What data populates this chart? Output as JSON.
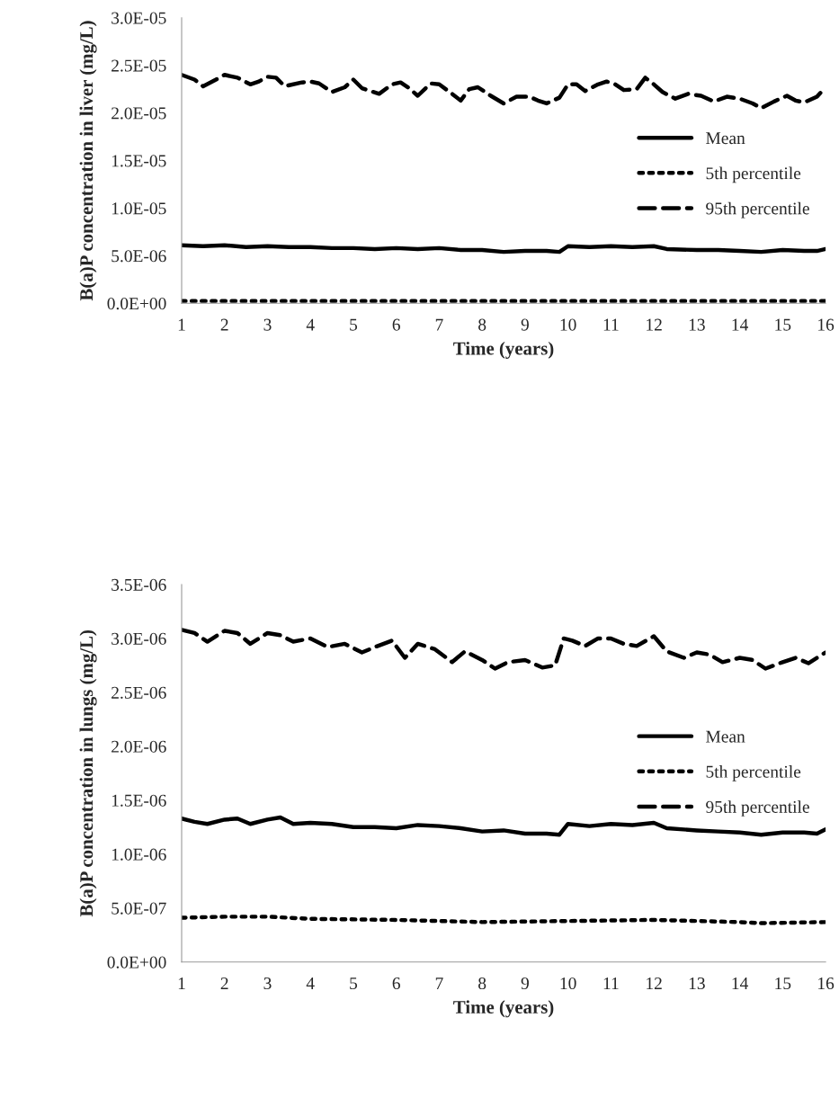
{
  "chart_data": [
    {
      "type": "line",
      "xlabel": "Time (years)",
      "ylabel": "B(a)P concentration in liver (mg/L)",
      "xlim": [
        1,
        16
      ],
      "xticks": [
        1,
        2,
        3,
        4,
        5,
        6,
        7,
        8,
        9,
        10,
        11,
        12,
        13,
        14,
        15,
        16
      ],
      "ylim": [
        0,
        3e-05
      ],
      "yticks": [
        {
          "value": 0,
          "label": "0.0E+00"
        },
        {
          "value": 5e-06,
          "label": "5.0E-06"
        },
        {
          "value": 1e-05,
          "label": "1.0E-05"
        },
        {
          "value": 1.5e-05,
          "label": "1.5E-05"
        },
        {
          "value": 2e-05,
          "label": "2.0E-05"
        },
        {
          "value": 2.5e-05,
          "label": "2.5E-05"
        },
        {
          "value": 3e-05,
          "label": "3.0E-05"
        }
      ],
      "grid": false,
      "legend": "right",
      "marker": "none",
      "series": [
        {
          "name": "Mean",
          "color": "#000000",
          "line_style": "solid",
          "x": [
            1,
            1.5,
            2,
            2.5,
            3,
            3.5,
            4,
            4.5,
            5,
            5.5,
            6,
            6.5,
            7,
            7.5,
            8,
            8.5,
            9,
            9.5,
            9.8,
            10,
            10.5,
            11,
            11.5,
            12,
            12.3,
            13,
            13.5,
            14,
            14.5,
            15,
            15.5,
            15.8,
            16
          ],
          "values": [
            6.1e-06,
            6e-06,
            6.1e-06,
            5.9e-06,
            6e-06,
            5.9e-06,
            5.9e-06,
            5.8e-06,
            5.8e-06,
            5.7e-06,
            5.8e-06,
            5.7e-06,
            5.8e-06,
            5.6e-06,
            5.6e-06,
            5.4e-06,
            5.5e-06,
            5.5e-06,
            5.4e-06,
            6e-06,
            5.9e-06,
            6e-06,
            5.9e-06,
            6e-06,
            5.7e-06,
            5.6e-06,
            5.6e-06,
            5.5e-06,
            5.4e-06,
            5.6e-06,
            5.5e-06,
            5.5e-06,
            5.7e-06
          ]
        },
        {
          "name": "5th percentile",
          "color": "#000000",
          "line_style": "dotted",
          "x": [
            1,
            4,
            8,
            12,
            16
          ],
          "values": [
            2.5e-07,
            2.5e-07,
            2.5e-07,
            2.5e-07,
            2.5e-07
          ]
        },
        {
          "name": "95th percentile",
          "color": "#000000",
          "line_style": "dashed",
          "x": [
            1,
            1.3,
            1.5,
            1.8,
            2,
            2.3,
            2.6,
            2.8,
            3,
            3.2,
            3.4,
            3.8,
            4,
            4.2,
            4.5,
            4.8,
            5,
            5.2,
            5.6,
            5.9,
            6.1,
            6.3,
            6.5,
            6.8,
            7,
            7.3,
            7.5,
            7.7,
            7.9,
            8.2,
            8.5,
            8.8,
            9.1,
            9.3,
            9.5,
            9.8,
            10,
            10.2,
            10.4,
            10.7,
            10.9,
            11.1,
            11.3,
            11.6,
            11.8,
            12,
            12.2,
            12.5,
            12.8,
            13.1,
            13.4,
            13.7,
            14,
            14.3,
            14.5,
            14.8,
            15.1,
            15.3,
            15.5,
            15.8,
            16
          ],
          "values": [
            2.4e-05,
            2.35e-05,
            2.28e-05,
            2.35e-05,
            2.4e-05,
            2.37e-05,
            2.3e-05,
            2.33e-05,
            2.38e-05,
            2.37e-05,
            2.28e-05,
            2.32e-05,
            2.33e-05,
            2.31e-05,
            2.22e-05,
            2.27e-05,
            2.35e-05,
            2.26e-05,
            2.2e-05,
            2.3e-05,
            2.32e-05,
            2.26e-05,
            2.18e-05,
            2.31e-05,
            2.3e-05,
            2.2e-05,
            2.13e-05,
            2.25e-05,
            2.27e-05,
            2.18e-05,
            2.1e-05,
            2.17e-05,
            2.17e-05,
            2.13e-05,
            2.1e-05,
            2.16e-05,
            2.3e-05,
            2.3e-05,
            2.23e-05,
            2.3e-05,
            2.33e-05,
            2.3e-05,
            2.24e-05,
            2.25e-05,
            2.37e-05,
            2.3e-05,
            2.22e-05,
            2.15e-05,
            2.2e-05,
            2.18e-05,
            2.12e-05,
            2.17e-05,
            2.15e-05,
            2.1e-05,
            2.05e-05,
            2.12e-05,
            2.18e-05,
            2.13e-05,
            2.11e-05,
            2.17e-05,
            2.27e-05
          ]
        }
      ]
    },
    {
      "type": "line",
      "xlabel": "Time (years)",
      "ylabel": "B(a)P concentration in lungs (mg/L)",
      "xlim": [
        1,
        16
      ],
      "xticks": [
        1,
        2,
        3,
        4,
        5,
        6,
        7,
        8,
        9,
        10,
        11,
        12,
        13,
        14,
        15,
        16
      ],
      "ylim": [
        0,
        3.5e-06
      ],
      "yticks": [
        {
          "value": 0,
          "label": "0.0E+00"
        },
        {
          "value": 5e-07,
          "label": "5.0E-07"
        },
        {
          "value": 1e-06,
          "label": "1.0E-06"
        },
        {
          "value": 1.5e-06,
          "label": "1.5E-06"
        },
        {
          "value": 2e-06,
          "label": "2.0E-06"
        },
        {
          "value": 2.5e-06,
          "label": "2.5E-06"
        },
        {
          "value": 3e-06,
          "label": "3.0E-06"
        },
        {
          "value": 3.5e-06,
          "label": "3.5E-06"
        }
      ],
      "grid": false,
      "legend": "right",
      "marker": "none",
      "series": [
        {
          "name": "Mean",
          "color": "#000000",
          "line_style": "solid",
          "x": [
            1,
            1.3,
            1.6,
            2,
            2.3,
            2.6,
            3,
            3.3,
            3.6,
            4,
            4.5,
            5,
            5.5,
            6,
            6.5,
            7,
            7.5,
            8,
            8.5,
            9,
            9.5,
            9.8,
            10,
            10.5,
            11,
            11.5,
            12,
            12.3,
            13,
            13.5,
            14,
            14.5,
            15,
            15.5,
            15.8,
            16
          ],
          "values": [
            1.33e-06,
            1.3e-06,
            1.28e-06,
            1.32e-06,
            1.33e-06,
            1.28e-06,
            1.32e-06,
            1.34e-06,
            1.28e-06,
            1.29e-06,
            1.28e-06,
            1.25e-06,
            1.25e-06,
            1.24e-06,
            1.27e-06,
            1.26e-06,
            1.24e-06,
            1.21e-06,
            1.22e-06,
            1.19e-06,
            1.19e-06,
            1.18e-06,
            1.28e-06,
            1.26e-06,
            1.28e-06,
            1.27e-06,
            1.29e-06,
            1.24e-06,
            1.22e-06,
            1.21e-06,
            1.2e-06,
            1.18e-06,
            1.2e-06,
            1.2e-06,
            1.19e-06,
            1.23e-06
          ]
        },
        {
          "name": "5th percentile",
          "color": "#000000",
          "line_style": "dotted",
          "x": [
            1,
            2,
            3,
            4,
            6,
            8,
            10,
            12,
            14,
            14.5,
            16
          ],
          "values": [
            4.1e-07,
            4.2e-07,
            4.2e-07,
            4e-07,
            3.9e-07,
            3.7e-07,
            3.8e-07,
            3.9e-07,
            3.7e-07,
            3.6e-07,
            3.7e-07
          ]
        },
        {
          "name": "95th percentile",
          "color": "#000000",
          "line_style": "dashed",
          "x": [
            1,
            1.3,
            1.6,
            2,
            2.3,
            2.6,
            3,
            3.3,
            3.6,
            4,
            4.4,
            4.8,
            5.2,
            5.5,
            5.9,
            6.2,
            6.5,
            6.9,
            7.3,
            7.6,
            8,
            8.3,
            8.6,
            9,
            9.4,
            9.7,
            9.9,
            10.1,
            10.4,
            10.7,
            11,
            11.3,
            11.6,
            12,
            12.3,
            12.7,
            13,
            13.3,
            13.6,
            14,
            14.3,
            14.6,
            15,
            15.3,
            15.6,
            16
          ],
          "values": [
            3.08e-06,
            3.05e-06,
            2.97e-06,
            3.07e-06,
            3.05e-06,
            2.95e-06,
            3.05e-06,
            3.03e-06,
            2.97e-06,
            3e-06,
            2.92e-06,
            2.95e-06,
            2.87e-06,
            2.92e-06,
            2.98e-06,
            2.82e-06,
            2.95e-06,
            2.9e-06,
            2.78e-06,
            2.88e-06,
            2.8e-06,
            2.72e-06,
            2.78e-06,
            2.8e-06,
            2.73e-06,
            2.75e-06,
            3e-06,
            2.98e-06,
            2.93e-06,
            3e-06,
            3e-06,
            2.95e-06,
            2.93e-06,
            3.02e-06,
            2.88e-06,
            2.82e-06,
            2.87e-06,
            2.85e-06,
            2.78e-06,
            2.82e-06,
            2.8e-06,
            2.72e-06,
            2.78e-06,
            2.82e-06,
            2.77e-06,
            2.87e-06
          ]
        }
      ]
    }
  ]
}
